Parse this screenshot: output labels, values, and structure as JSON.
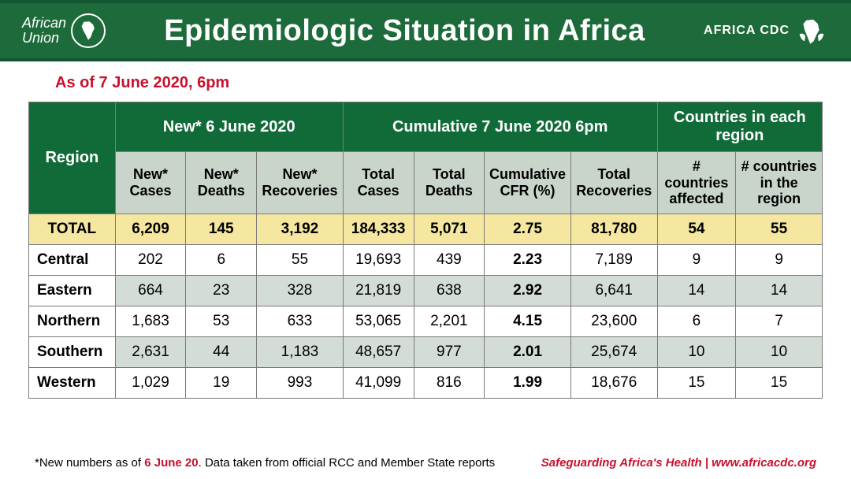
{
  "header": {
    "title": "Epidemiologic Situation in Africa",
    "left_logo_line1": "African",
    "left_logo_line2": "Union",
    "right_logo_text": "AFRICA CDC"
  },
  "date_line": "As of 7 June 2020, 6pm",
  "table": {
    "col_region": "Region",
    "group_new": "New* 6 June 2020",
    "group_cumulative": "Cumulative 7 June 2020 6pm",
    "group_countries": "Countries in each region",
    "sub_new_cases": "New* Cases",
    "sub_new_deaths": "New* Deaths",
    "sub_new_recov": "New* Recoveries",
    "sub_total_cases": "Total Cases",
    "sub_total_deaths": "Total Deaths",
    "sub_cfr": "Cumulative CFR (%)",
    "sub_total_recov": "Total Recoveries",
    "sub_countries_affected": "# countries affected",
    "sub_countries_region": "# countries in the region",
    "total": {
      "label": "TOTAL",
      "new_cases": "6,209",
      "new_deaths": "145",
      "new_recov": "3,192",
      "total_cases": "184,333",
      "total_deaths": "5,071",
      "cfr": "2.75",
      "total_recov": "81,780",
      "c_affected": "54",
      "c_region": "55"
    },
    "rows": [
      {
        "label": "Central",
        "new_cases": "202",
        "new_deaths": "6",
        "new_recov": "55",
        "total_cases": "19,693",
        "total_deaths": "439",
        "cfr": "2.23",
        "total_recov": "7,189",
        "c_affected": "9",
        "c_region": "9"
      },
      {
        "label": "Eastern",
        "new_cases": "664",
        "new_deaths": "23",
        "new_recov": "328",
        "total_cases": "21,819",
        "total_deaths": "638",
        "cfr": "2.92",
        "total_recov": "6,641",
        "c_affected": "14",
        "c_region": "14"
      },
      {
        "label": "Northern",
        "new_cases": "1,683",
        "new_deaths": "53",
        "new_recov": "633",
        "total_cases": "53,065",
        "total_deaths": "2,201",
        "cfr": "4.15",
        "total_recov": "23,600",
        "c_affected": "6",
        "c_region": "7"
      },
      {
        "label": "Southern",
        "new_cases": "2,631",
        "new_deaths": "44",
        "new_recov": "1,183",
        "total_cases": "48,657",
        "total_deaths": "977",
        "cfr": "2.01",
        "total_recov": "25,674",
        "c_affected": "10",
        "c_region": "10"
      },
      {
        "label": "Western",
        "new_cases": "1,029",
        "new_deaths": "19",
        "new_recov": "993",
        "total_cases": "41,099",
        "total_deaths": "816",
        "cfr": "1.99",
        "total_recov": "18,676",
        "c_affected": "15",
        "c_region": "15"
      }
    ]
  },
  "footer": {
    "left_pre": "*New numbers as of  ",
    "left_red": "6 June 20",
    "left_post": ". Data taken from official RCC and Member State reports",
    "right": "Safeguarding Africa's Health | www.africacdc.org"
  },
  "colors": {
    "header_green": "#1d6b3a",
    "table_header_green": "#116b38",
    "sub_header_bg": "#c9d5cb",
    "total_row_bg": "#f5e7a0",
    "alt_row_bg": "#d3ddd5",
    "accent_red": "#c8102e",
    "border": "#7a7a7a"
  }
}
